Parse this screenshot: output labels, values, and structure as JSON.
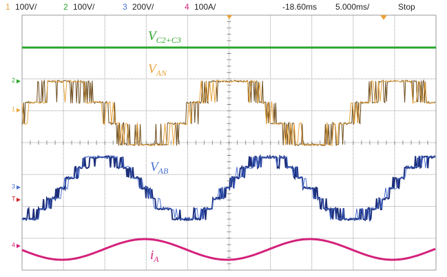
{
  "header": {
    "channels": [
      {
        "number": "1",
        "scale": "100V/"
      },
      {
        "number": "2",
        "scale": "100V/"
      },
      {
        "number": "3",
        "scale": "200V/"
      },
      {
        "number": "4",
        "scale": "100A/"
      }
    ],
    "time_offset": "-18.60ms",
    "time_scale": "5.000ms/",
    "status": "Stop"
  },
  "traces": [
    {
      "label": "V",
      "subscript": "C2+C3"
    },
    {
      "label": "V",
      "subscript": "AN"
    },
    {
      "label": "V",
      "subscript": "AB"
    },
    {
      "label": "i",
      "subscript": "A"
    }
  ],
  "markers": [
    "2",
    "1",
    "3",
    "T",
    "4"
  ]
}
